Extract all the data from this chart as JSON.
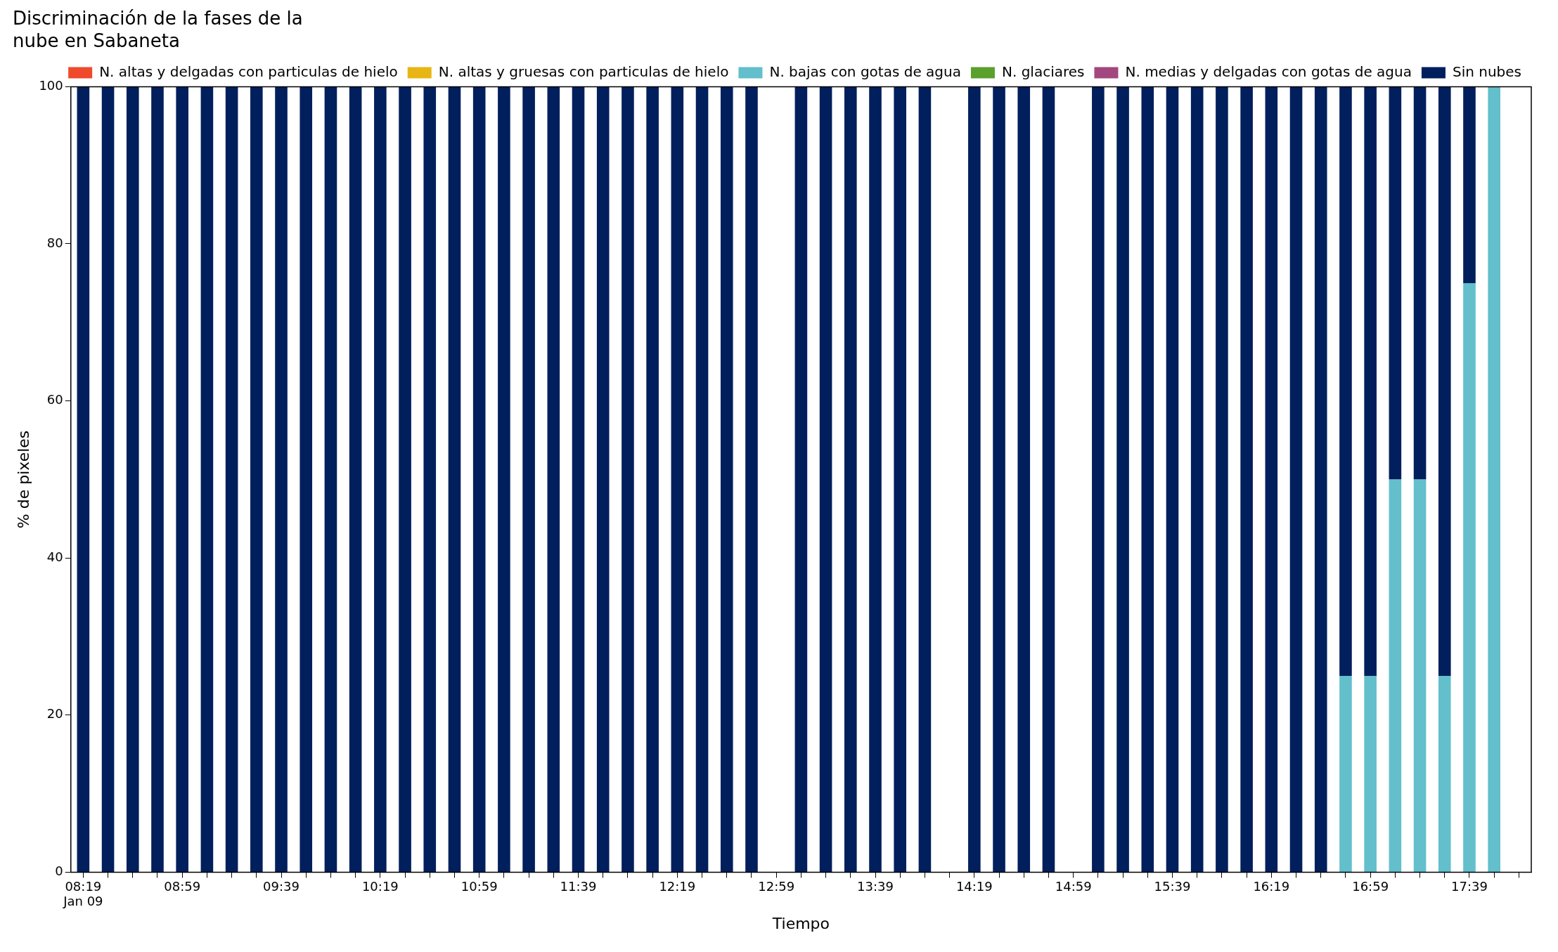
{
  "chart_data": {
    "type": "bar",
    "stacked": true,
    "title": "Discriminación de la fases de la\nnube en Sabaneta",
    "xlabel": "Tiempo",
    "ylabel": "% de pixeles",
    "categories": [
      "08:19\nJan 09",
      null,
      null,
      null,
      "08:59",
      null,
      null,
      null,
      "09:39",
      null,
      null,
      null,
      "10:19",
      null,
      null,
      null,
      "10:59",
      null,
      null,
      null,
      "11:39",
      null,
      null,
      null,
      "12:19",
      null,
      null,
      null,
      "12:59",
      null,
      null,
      null,
      "13:39",
      null,
      null,
      null,
      "14:19",
      null,
      null,
      null,
      "14:59",
      null,
      null,
      null,
      "15:39",
      null,
      null,
      null,
      "16:19",
      null,
      null,
      null,
      "16:59",
      null,
      null,
      null,
      "17:39",
      null,
      null
    ],
    "ylim": [
      0,
      100
    ],
    "yticks": [
      0,
      20,
      40,
      60,
      80,
      100
    ],
    "grid": false,
    "legend": "top right",
    "series": [
      {
        "name": "N. altas y delgadas con particulas de hielo",
        "color": "#ee4a2b",
        "values": [
          0,
          0,
          0,
          0,
          0,
          0,
          0,
          0,
          0,
          0,
          0,
          0,
          0,
          0,
          0,
          0,
          0,
          0,
          0,
          0,
          0,
          0,
          0,
          0,
          0,
          0,
          0,
          0,
          null,
          0,
          0,
          0,
          0,
          0,
          0,
          null,
          0,
          0,
          0,
          0,
          null,
          0,
          0,
          0,
          0,
          0,
          0,
          0,
          0,
          0,
          0,
          0,
          0,
          0,
          0,
          0,
          0,
          0,
          null
        ]
      },
      {
        "name": "N. altas y gruesas con particulas de hielo",
        "color": "#e8b614",
        "values": [
          0,
          0,
          0,
          0,
          0,
          0,
          0,
          0,
          0,
          0,
          0,
          0,
          0,
          0,
          0,
          0,
          0,
          0,
          0,
          0,
          0,
          0,
          0,
          0,
          0,
          0,
          0,
          0,
          null,
          0,
          0,
          0,
          0,
          0,
          0,
          null,
          0,
          0,
          0,
          0,
          null,
          0,
          0,
          0,
          0,
          0,
          0,
          0,
          0,
          0,
          0,
          0,
          0,
          0,
          0,
          0,
          0,
          0,
          null
        ]
      },
      {
        "name": "N. bajas con gotas de agua",
        "color": "#62bfcb",
        "values": [
          0,
          0,
          0,
          0,
          0,
          0,
          0,
          0,
          0,
          0,
          0,
          0,
          0,
          0,
          0,
          0,
          0,
          0,
          0,
          0,
          0,
          0,
          0,
          0,
          0,
          0,
          0,
          0,
          null,
          0,
          0,
          0,
          0,
          0,
          0,
          null,
          0,
          0,
          0,
          0,
          null,
          0,
          0,
          0,
          0,
          0,
          0,
          0,
          0,
          0,
          0,
          25,
          25,
          50,
          50,
          25,
          75,
          100,
          null
        ]
      },
      {
        "name": "N. glaciares",
        "color": "#5aa02c",
        "values": [
          0,
          0,
          0,
          0,
          0,
          0,
          0,
          0,
          0,
          0,
          0,
          0,
          0,
          0,
          0,
          0,
          0,
          0,
          0,
          0,
          0,
          0,
          0,
          0,
          0,
          0,
          0,
          0,
          null,
          0,
          0,
          0,
          0,
          0,
          0,
          null,
          0,
          0,
          0,
          0,
          null,
          0,
          0,
          0,
          0,
          0,
          0,
          0,
          0,
          0,
          0,
          0,
          0,
          0,
          0,
          0,
          0,
          0,
          null
        ]
      },
      {
        "name": "N. medias y delgadas con gotas de agua",
        "color": "#a2487e",
        "values": [
          0,
          0,
          0,
          0,
          0,
          0,
          0,
          0,
          0,
          0,
          0,
          0,
          0,
          0,
          0,
          0,
          0,
          0,
          0,
          0,
          0,
          0,
          0,
          0,
          0,
          0,
          0,
          0,
          null,
          0,
          0,
          0,
          0,
          0,
          0,
          null,
          0,
          0,
          0,
          0,
          null,
          0,
          0,
          0,
          0,
          0,
          0,
          0,
          0,
          0,
          0,
          0,
          0,
          0,
          0,
          0,
          0,
          0,
          null
        ]
      },
      {
        "name": "Sin nubes",
        "color": "#001f5c",
        "values": [
          100,
          100,
          100,
          100,
          100,
          100,
          100,
          100,
          100,
          100,
          100,
          100,
          100,
          100,
          100,
          100,
          100,
          100,
          100,
          100,
          100,
          100,
          100,
          100,
          100,
          100,
          100,
          100,
          null,
          100,
          100,
          100,
          100,
          100,
          100,
          null,
          100,
          100,
          100,
          100,
          null,
          100,
          100,
          100,
          100,
          100,
          100,
          100,
          100,
          100,
          100,
          75,
          75,
          50,
          50,
          75,
          25,
          0,
          null
        ]
      }
    ]
  }
}
